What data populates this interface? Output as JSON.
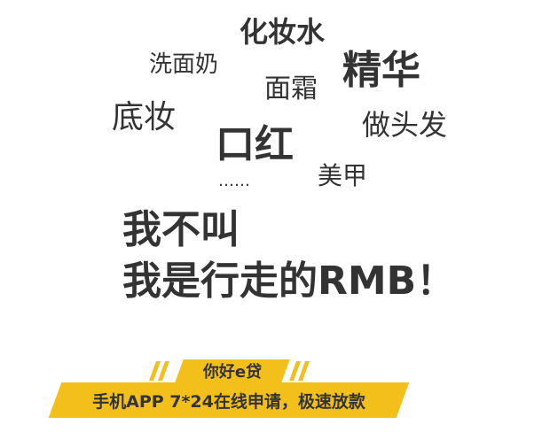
{
  "words": {
    "huazhuangshui": "化妆水",
    "ximiannai": "洗面奶",
    "jinghua": "精华",
    "mianshuang": "面霜",
    "dizhuang": "底妆",
    "zuotoufa": "做头发",
    "kouhong": "口红",
    "ellipsis": "……",
    "meijia": "美甲"
  },
  "headline": {
    "line1": "我不叫",
    "line2": "我是行走的RMB！"
  },
  "tag": {
    "title": "你好e贷",
    "subtitle": "手机APP 7*24在线申请，极速放款"
  },
  "colors": {
    "text": "#333333",
    "accent": "#f3c01b"
  }
}
